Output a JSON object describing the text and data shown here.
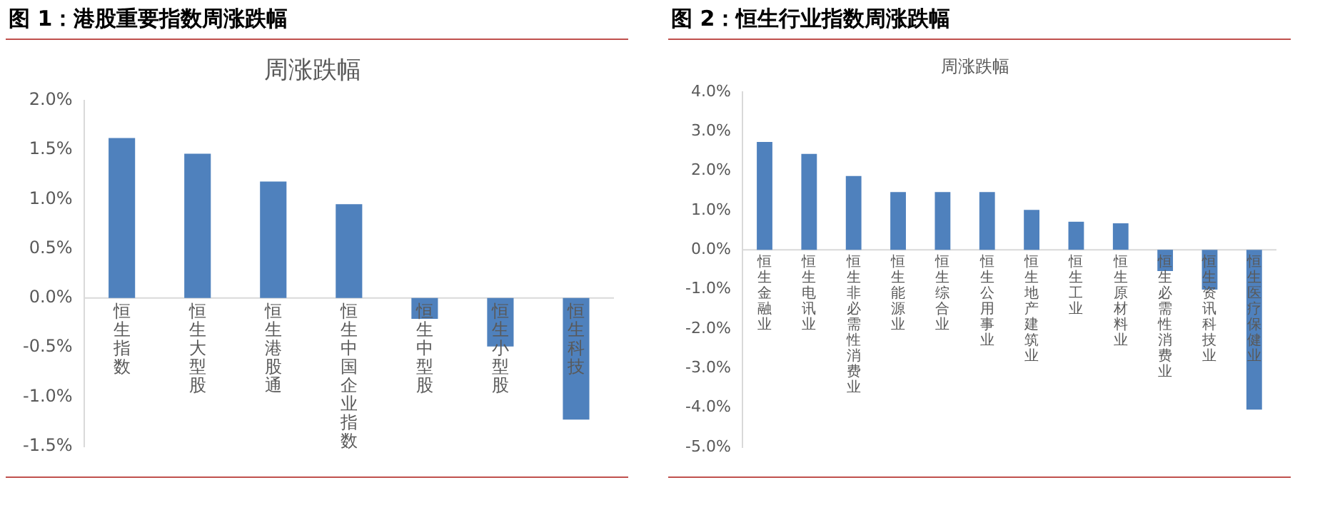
{
  "chart_data": [
    {
      "type": "bar",
      "title": "图 1：港股重要指数周涨跌幅",
      "subtitle": "周涨跌幅",
      "categories": [
        "恒生指数",
        "恒生大型股",
        "恒生港股通",
        "恒生中国企业指数",
        "恒生中型股",
        "恒生小型股",
        "恒生科技"
      ],
      "values": [
        1.62,
        1.46,
        1.18,
        0.95,
        -0.21,
        -0.49,
        -1.23
      ],
      "color": "#4f81bd",
      "ylim": [
        -1.5,
        2.0
      ],
      "yticks": [
        {
          "value": -1.5,
          "label": "-1.5%"
        },
        {
          "value": -1.0,
          "label": "-1.0%"
        },
        {
          "value": -0.5,
          "label": "-0.5%"
        },
        {
          "value": 0,
          "label": "0.0%"
        },
        {
          "value": 0.5,
          "label": "0.5%"
        },
        {
          "value": 1.0,
          "label": "1.0%"
        },
        {
          "value": 1.5,
          "label": "1.5%"
        },
        {
          "value": 2.0,
          "label": "2.0%"
        }
      ],
      "grid": false,
      "legend": false
    },
    {
      "type": "bar",
      "title": "图 2：恒生行业指数周涨跌幅",
      "subtitle": "周涨跌幅",
      "categories": [
        "恒生金融业",
        "恒生电讯业",
        "恒生非必需性消费业",
        "恒生能源业",
        "恒生综合业",
        "恒生公用事业",
        "恒生地产建筑业",
        "恒生工业",
        "恒生原材料业",
        "恒生必需性消费业",
        "恒生资讯科技业",
        "恒生医疗保健业"
      ],
      "values": [
        2.73,
        2.43,
        1.87,
        1.46,
        1.46,
        1.46,
        1.01,
        0.71,
        0.67,
        -0.54,
        -1.01,
        -4.05
      ],
      "color": "#4f81bd",
      "ylim": [
        -5.0,
        4.0
      ],
      "yticks": [
        {
          "value": -5,
          "label": "-5.0%"
        },
        {
          "value": -4,
          "label": "-4.0%"
        },
        {
          "value": -3,
          "label": "-3.0%"
        },
        {
          "value": -2,
          "label": "-2.0%"
        },
        {
          "value": -1,
          "label": "-1.0%"
        },
        {
          "value": 0,
          "label": "0.0%"
        },
        {
          "value": 1,
          "label": "1.0%"
        },
        {
          "value": 2,
          "label": "2.0%"
        },
        {
          "value": 3,
          "label": "3.0%"
        },
        {
          "value": 4,
          "label": "4.0%"
        }
      ],
      "grid": false,
      "legend": false
    }
  ]
}
